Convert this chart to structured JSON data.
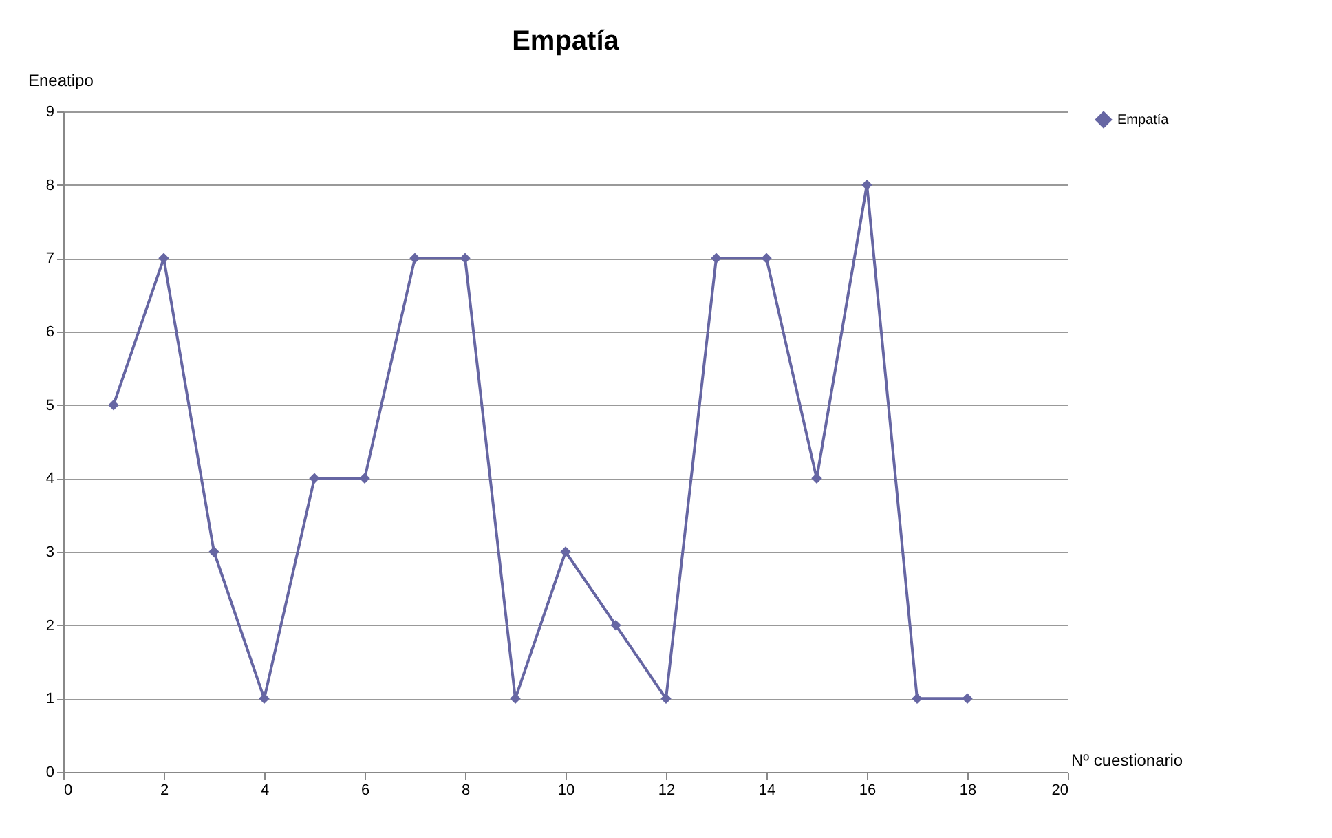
{
  "chart_data": {
    "type": "line",
    "title": "Empatía",
    "xlabel": "Nº cuestionario",
    "ylabel": "Eneatipo",
    "x": [
      1,
      2,
      3,
      4,
      5,
      6,
      7,
      8,
      9,
      10,
      11,
      12,
      13,
      14,
      15,
      16,
      17,
      18
    ],
    "series": [
      {
        "name": "Empatía",
        "color": "#6666a3",
        "values": [
          5,
          7,
          3,
          1,
          4,
          4,
          7,
          7,
          1,
          3,
          2,
          1,
          7,
          7,
          4,
          8,
          1,
          1
        ]
      }
    ],
    "xlim": [
      0,
      20
    ],
    "xticks": [
      0,
      2,
      4,
      6,
      8,
      10,
      12,
      14,
      16,
      18,
      20
    ],
    "ylim": [
      0,
      9
    ],
    "yticks": [
      0,
      1,
      2,
      3,
      4,
      5,
      6,
      7,
      8,
      9
    ],
    "grid": "y",
    "legend": "right",
    "marker": "diamond",
    "line_style": "solid"
  }
}
